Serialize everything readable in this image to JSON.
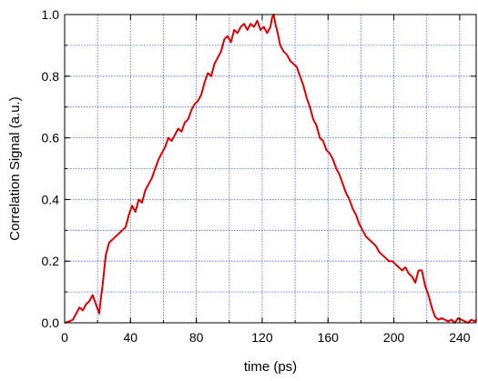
{
  "chart_data": {
    "type": "line",
    "xlabel": "time (ps)",
    "ylabel": "Correlation Signal (a.u.)",
    "xlim": [
      0,
      250
    ],
    "ylim": [
      0,
      1.0
    ],
    "x_ticks": [
      0,
      40,
      80,
      120,
      160,
      200,
      240
    ],
    "x_tick_labels": [
      "0",
      "40",
      "80",
      "120",
      "160",
      "200",
      "240"
    ],
    "x_minor_step": 20,
    "y_ticks": [
      0,
      0.2,
      0.4,
      0.6,
      0.8,
      1.0
    ],
    "y_tick_labels": [
      "0.0",
      "0.2",
      "0.4",
      "0.6",
      "0.8",
      "1.0"
    ],
    "y_minor_step": 0.1,
    "grid": true,
    "legend": "none",
    "colors": {
      "line": "#e00000",
      "grid": "#3344cc",
      "axis": "#000000"
    },
    "series": [
      {
        "x": [
          0,
          3,
          5,
          7,
          9,
          11,
          13,
          15,
          17,
          19,
          21,
          22,
          23,
          24,
          25,
          27,
          29,
          31,
          33,
          35,
          37,
          39,
          41,
          43,
          45,
          47,
          49,
          51,
          53,
          55,
          57,
          59,
          61,
          63,
          65,
          67,
          69,
          71,
          73,
          75,
          77,
          79,
          81,
          83,
          85,
          87,
          89,
          91,
          93,
          95,
          97,
          99,
          101,
          103,
          105,
          107,
          109,
          111,
          113,
          115,
          117,
          119,
          121,
          123,
          125,
          126,
          127,
          128,
          129,
          131,
          133,
          135,
          137,
          139,
          141,
          143,
          145,
          147,
          149,
          151,
          153,
          155,
          157,
          159,
          161,
          163,
          165,
          167,
          169,
          171,
          173,
          175,
          177,
          179,
          181,
          183,
          185,
          187,
          189,
          191,
          193,
          195,
          197,
          199,
          201,
          203,
          205,
          207,
          209,
          211,
          213,
          215,
          217,
          219,
          221,
          223,
          225,
          227,
          229,
          231,
          233,
          235,
          237,
          239,
          241,
          243,
          245,
          247,
          249,
          250
        ],
        "y": [
          0.0,
          0.005,
          0.01,
          0.03,
          0.05,
          0.04,
          0.06,
          0.07,
          0.09,
          0.06,
          0.03,
          0.08,
          0.12,
          0.17,
          0.22,
          0.26,
          0.27,
          0.28,
          0.29,
          0.3,
          0.31,
          0.35,
          0.38,
          0.36,
          0.4,
          0.39,
          0.43,
          0.45,
          0.47,
          0.5,
          0.53,
          0.55,
          0.57,
          0.6,
          0.59,
          0.61,
          0.63,
          0.62,
          0.65,
          0.66,
          0.69,
          0.71,
          0.72,
          0.74,
          0.78,
          0.81,
          0.8,
          0.84,
          0.86,
          0.88,
          0.92,
          0.93,
          0.91,
          0.95,
          0.94,
          0.96,
          0.97,
          0.95,
          0.97,
          0.96,
          0.98,
          0.95,
          0.96,
          0.94,
          0.96,
          0.99,
          1.0,
          0.97,
          0.95,
          0.9,
          0.88,
          0.87,
          0.85,
          0.84,
          0.83,
          0.8,
          0.77,
          0.73,
          0.7,
          0.66,
          0.64,
          0.6,
          0.59,
          0.56,
          0.55,
          0.53,
          0.5,
          0.48,
          0.45,
          0.42,
          0.4,
          0.37,
          0.35,
          0.32,
          0.3,
          0.28,
          0.27,
          0.26,
          0.25,
          0.23,
          0.22,
          0.21,
          0.2,
          0.2,
          0.19,
          0.18,
          0.17,
          0.18,
          0.16,
          0.15,
          0.13,
          0.17,
          0.17,
          0.12,
          0.09,
          0.05,
          0.02,
          0.01,
          0.015,
          0.01,
          0.005,
          0.01,
          0.0,
          0.015,
          0.01,
          0.005,
          0.0,
          0.01,
          0.005,
          0.01
        ]
      }
    ]
  }
}
